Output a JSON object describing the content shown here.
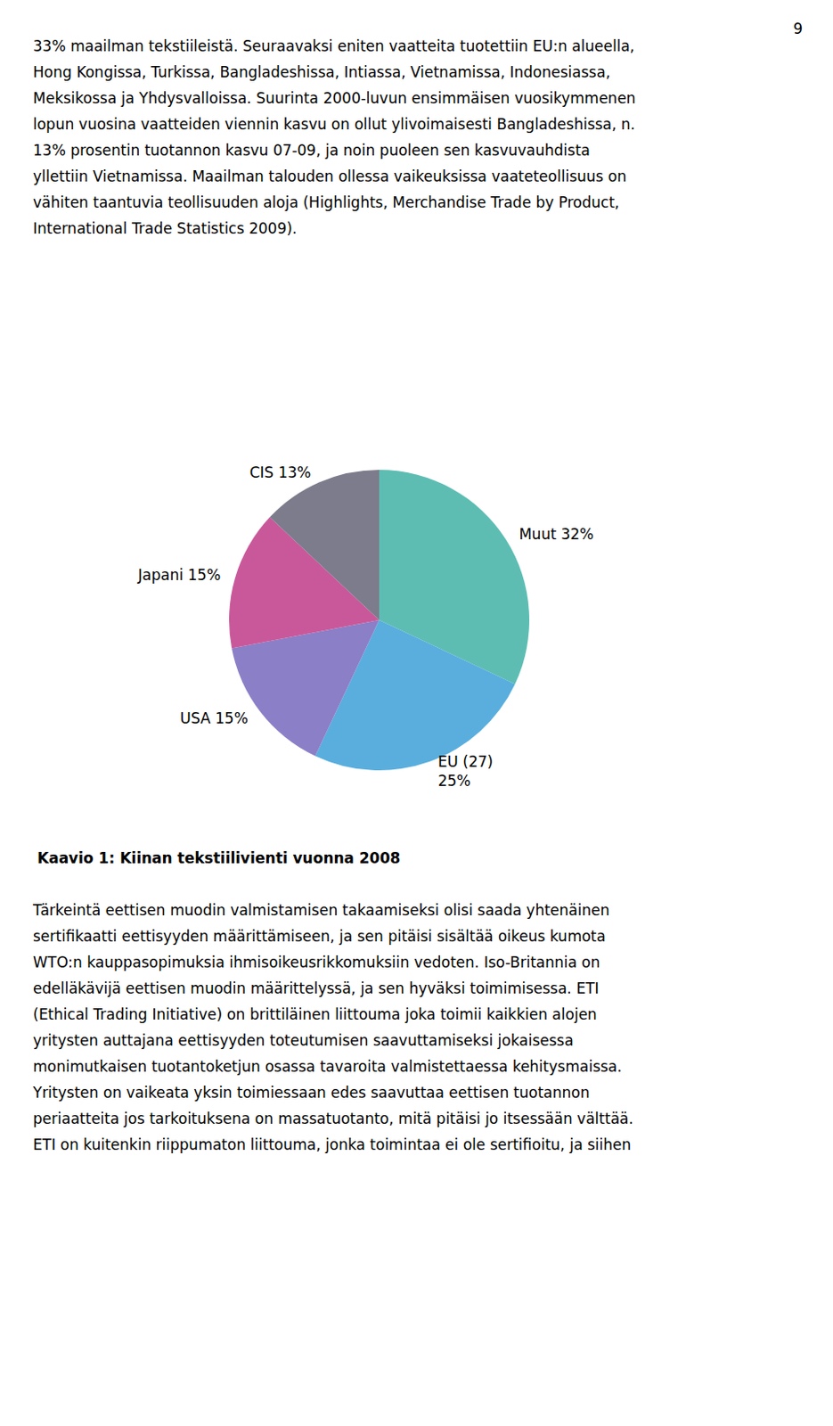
{
  "page_number": "9",
  "text_before": [
    "33% maailman tekstiileistä. Seuraavaksi eniten vaatteita tuotettiin EU:n alueella,",
    "Hong Kongissa, Turkissa, Bangladeshissa, Intiassa, Vietnamissa, Indonesiassa,",
    "Meksikossa ja Yhdysvalloissa. Suurinta 2000-luvun ensimmäisen vuosikymmenen",
    "lopun vuosina vaatteiden viennin kasvu on ollut ylivoimaisesti Bangladeshissa, n.",
    "13% prosentin tuotannon kasvu 07-09, ja noin puoleen sen kasvuvauhdista",
    "yllettiin Vietnamissa. Maailman talouden ollessa vaikeuksissa vaateteollisuus on",
    "vähiten taantuvia teollisuuden aloja (Highlights, Merchandise Trade by Product,",
    "International Trade Statistics 2009)."
  ],
  "text_after": [
    "Tärkeintä eettisen muodin valmistamisen takaamiseksi olisi saada yhtenäinen",
    "sertifikaatti eettisyyden määrittämiseen, ja sen pitäisi sisältää oikeus kumota",
    "WTO:n kauppasopimuksia ihmisoikeusrikkomuksiin vedoten. Iso-Britannia on",
    "edelläkävijä eettisen muodin määrittelyssä, ja sen hyväksi toimimisessa. ETI",
    "(Ethical Trading Initiative) on brittiläinen liittouma joka toimii kaikkien alojen",
    "yritysten auttajana eettisyyden toteutumisen saavuttamiseksi jokaisessa",
    "monimutkaisen tuotantoketjun osassa tavaroita valmistettaessa kehitysmaissa.",
    "Yritysten on vaikeata yksin toimiessaan edes saavuttaa eettisen tuotannon",
    "periaatteita jos tarkoituksena on massatuotanto, mitä pitäisi jo itsessään välttää.",
    "ETI on kuitenkin riippumaton liittouma, jonka toimintaa ei ole sertifioitu, ja siihen"
  ],
  "chart_data": {
    "type": "pie",
    "title": "Kaavio 1: Kiinan tekstiilivienti vuonna 2008",
    "categories": [
      "Muut",
      "EU (27)",
      "USA",
      "Japani",
      "CIS"
    ],
    "values": [
      32,
      25,
      15,
      15,
      13
    ],
    "value_labels": [
      "Muut 32%",
      "EU (27)\n25%",
      "USA 15%",
      "Japani 15%",
      "CIS 13%"
    ],
    "colors": [
      "#5dbdb3",
      "#59aedd",
      "#8b7fc7",
      "#c9589a",
      "#7c7c8c"
    ],
    "data_labels": true,
    "legend": false
  }
}
